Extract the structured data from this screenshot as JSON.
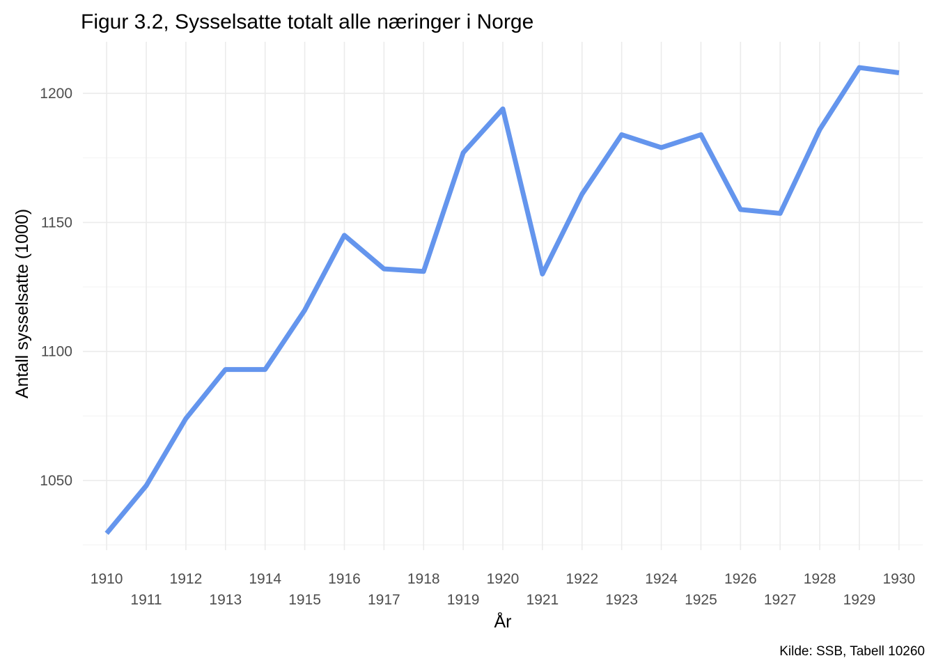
{
  "chart_data": {
    "type": "line",
    "title": "Figur 3.2, Sysselsatte totalt alle næringer i Norge",
    "xlabel": "År",
    "ylabel": "Antall sysselsatte (1000)",
    "caption": "Kilde: SSB, Tabell 10260",
    "x": [
      1910,
      1911,
      1912,
      1913,
      1914,
      1915,
      1916,
      1917,
      1918,
      1919,
      1920,
      1921,
      1922,
      1923,
      1924,
      1925,
      1926,
      1927,
      1928,
      1929,
      1930
    ],
    "x_tick_labels": [
      "1910",
      "1911",
      "1912",
      "1913",
      "1914",
      "1915",
      "1916",
      "1917",
      "1918",
      "1919",
      "1920",
      "1921",
      "1922",
      "1923",
      "1924",
      "1925",
      "1926",
      "1927",
      "1928",
      "1929",
      "1930"
    ],
    "y_ticks": [
      1050,
      1100,
      1150,
      1200
    ],
    "y_tick_labels": [
      "1050",
      "1100",
      "1150",
      "1200"
    ],
    "ylim": [
      1023,
      1220
    ],
    "xlim": [
      1909.4,
      1930.6
    ],
    "series": [
      {
        "color": "#6495ED",
        "values": [
          1029.5,
          1048,
          1074,
          1093,
          1093,
          1116,
          1145,
          1132,
          1131,
          1177,
          1194,
          1130,
          1161,
          1184,
          1179,
          1184,
          1155,
          1153.5,
          1186,
          1210,
          1208
        ]
      }
    ],
    "grid": true,
    "legend": "none"
  }
}
